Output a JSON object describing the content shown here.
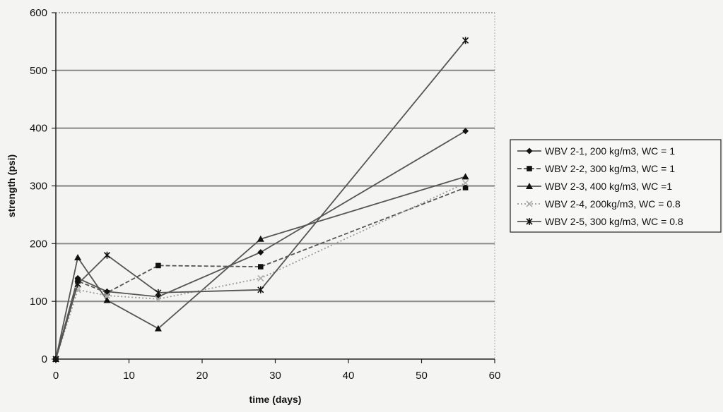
{
  "chart_data": {
    "type": "line",
    "title": "",
    "xlabel": "time (days)",
    "ylabel": "strength (psi)",
    "xlim": [
      0,
      60
    ],
    "ylim": [
      0,
      600
    ],
    "x_ticks": [
      0,
      10,
      20,
      30,
      40,
      50,
      60
    ],
    "y_ticks": [
      0,
      100,
      200,
      300,
      400,
      500,
      600
    ],
    "grid": "horizontal",
    "legend_position": "right",
    "series": [
      {
        "name": "WBV 2-1, 200 kg/m3, WC = 1",
        "marker": "diamond",
        "dash": "solid",
        "color": "#555555",
        "points": [
          [
            0,
            0
          ],
          [
            3,
            140
          ],
          [
            7,
            117
          ],
          [
            14,
            108
          ],
          [
            28,
            185
          ],
          [
            56,
            395
          ]
        ]
      },
      {
        "name": "WBV 2-2, 300 kg/m3, WC = 1",
        "marker": "square",
        "dash": "dashed",
        "color": "#555555",
        "points": [
          [
            0,
            0
          ],
          [
            3,
            135
          ],
          [
            7,
            115
          ],
          [
            14,
            162
          ],
          [
            28,
            160
          ],
          [
            56,
            297
          ]
        ]
      },
      {
        "name": "WBV 2-3, 400 kg/m3, WC =1",
        "marker": "triangle",
        "dash": "solid",
        "color": "#555555",
        "points": [
          [
            0,
            0
          ],
          [
            3,
            176
          ],
          [
            7,
            102
          ],
          [
            14,
            53
          ],
          [
            28,
            208
          ],
          [
            56,
            316
          ]
        ]
      },
      {
        "name": "WBV 2-4, 200kg/m3, WC = 0.8",
        "marker": "x",
        "dash": "dotted",
        "color": "#9a9a9a",
        "points": [
          [
            0,
            0
          ],
          [
            3,
            120
          ],
          [
            7,
            110
          ],
          [
            14,
            104
          ],
          [
            28,
            140
          ],
          [
            56,
            305
          ]
        ]
      },
      {
        "name": "WBV 2-5, 300 kg/m3, WC = 0.8",
        "marker": "star",
        "dash": "solid",
        "color": "#555555",
        "points": [
          [
            0,
            0
          ],
          [
            3,
            130
          ],
          [
            7,
            180
          ],
          [
            14,
            115
          ],
          [
            28,
            120
          ],
          [
            56,
            552
          ]
        ]
      }
    ]
  }
}
